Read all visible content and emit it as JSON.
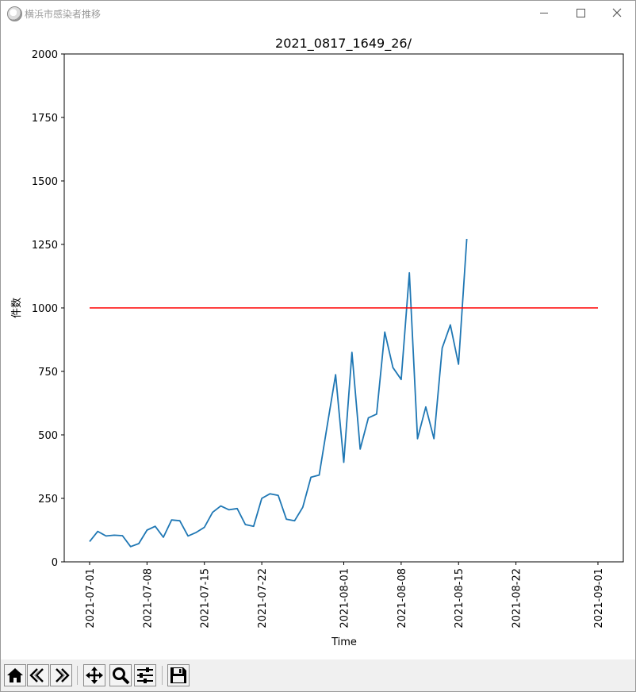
{
  "window": {
    "title": "横浜市感染者推移",
    "controls": {
      "minimize_icon": "minimize-icon",
      "maximize_icon": "maximize-icon",
      "close_icon": "close-icon"
    }
  },
  "toolbar": {
    "buttons": [
      {
        "name": "home-button",
        "icon": "home-icon"
      },
      {
        "name": "back-button",
        "icon": "back-arrow-icon"
      },
      {
        "name": "forward-button",
        "icon": "forward-arrow-icon"
      },
      {
        "name": "pan-button",
        "icon": "move-icon"
      },
      {
        "name": "zoom-button",
        "icon": "magnifier-icon"
      },
      {
        "name": "configure-subplots-button",
        "icon": "sliders-icon"
      },
      {
        "name": "save-button",
        "icon": "floppy-disk-icon"
      }
    ]
  },
  "chart_data": {
    "type": "line",
    "title": "2021_0817_1649_26/",
    "xlabel": "Time",
    "ylabel": "件数",
    "ylim": [
      0,
      2000
    ],
    "xlim": [
      "2021-07-01",
      "2021-09-01"
    ],
    "yticks": [
      0,
      250,
      500,
      750,
      1000,
      1250,
      1500,
      1750,
      2000
    ],
    "xticks": [
      "2021-07-01",
      "2021-07-08",
      "2021-07-15",
      "2021-07-22",
      "2021-08-01",
      "2021-08-08",
      "2021-08-15",
      "2021-08-22",
      "2021-09-01"
    ],
    "grid": false,
    "series": [
      {
        "color": "#1f77b4",
        "x": [
          "2021-07-01",
          "2021-07-02",
          "2021-07-03",
          "2021-07-04",
          "2021-07-05",
          "2021-07-06",
          "2021-07-07",
          "2021-07-08",
          "2021-07-09",
          "2021-07-10",
          "2021-07-11",
          "2021-07-12",
          "2021-07-13",
          "2021-07-14",
          "2021-07-15",
          "2021-07-16",
          "2021-07-17",
          "2021-07-18",
          "2021-07-19",
          "2021-07-20",
          "2021-07-21",
          "2021-07-22",
          "2021-07-23",
          "2021-07-24",
          "2021-07-25",
          "2021-07-26",
          "2021-07-27",
          "2021-07-28",
          "2021-07-29",
          "2021-07-30",
          "2021-07-31",
          "2021-08-01",
          "2021-08-02",
          "2021-08-03",
          "2021-08-04",
          "2021-08-05",
          "2021-08-06",
          "2021-08-07",
          "2021-08-08",
          "2021-08-09",
          "2021-08-10",
          "2021-08-11",
          "2021-08-12",
          "2021-08-13",
          "2021-08-14",
          "2021-08-15",
          "2021-08-16"
        ],
        "values": [
          80,
          120,
          102,
          105,
          103,
          60,
          72,
          125,
          140,
          97,
          165,
          162,
          102,
          116,
          136,
          195,
          220,
          205,
          210,
          147,
          140,
          250,
          268,
          262,
          168,
          162,
          215,
          333,
          342,
          540,
          737,
          392,
          825,
          444,
          567,
          582,
          905,
          765,
          718,
          1138,
          485,
          610,
          485,
          842,
          933,
          778,
          1272
        ]
      },
      {
        "color": "#ff0000",
        "x": [
          "2021-07-01",
          "2021-09-01"
        ],
        "values": [
          1000,
          1000
        ]
      }
    ]
  }
}
